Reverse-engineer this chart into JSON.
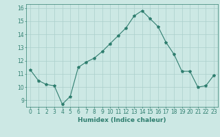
{
  "x": [
    0,
    1,
    2,
    3,
    4,
    5,
    6,
    7,
    8,
    9,
    10,
    11,
    12,
    13,
    14,
    15,
    16,
    17,
    18,
    19,
    20,
    21,
    22,
    23
  ],
  "y": [
    11.3,
    10.5,
    10.2,
    10.1,
    8.7,
    9.3,
    11.5,
    11.9,
    12.2,
    12.7,
    13.3,
    13.9,
    14.5,
    15.4,
    15.8,
    15.2,
    14.6,
    13.4,
    12.5,
    11.2,
    11.2,
    10.0,
    10.1,
    10.9
  ],
  "line_color": "#2e7d6e",
  "marker": "*",
  "marker_size": 3,
  "bg_color": "#cce8e4",
  "grid_color": "#aacfcb",
  "xlabel": "Humidex (Indice chaleur)",
  "xlim": [
    -0.5,
    23.5
  ],
  "ylim": [
    8.5,
    16.3
  ],
  "yticks": [
    9,
    10,
    11,
    12,
    13,
    14,
    15,
    16
  ],
  "xticks": [
    0,
    1,
    2,
    3,
    4,
    5,
    6,
    7,
    8,
    9,
    10,
    11,
    12,
    13,
    14,
    15,
    16,
    17,
    18,
    19,
    20,
    21,
    22,
    23
  ],
  "tick_fontsize": 5.5,
  "xlabel_fontsize": 6.5,
  "tick_color": "#2e7d6e",
  "label_color": "#2e7d6e"
}
